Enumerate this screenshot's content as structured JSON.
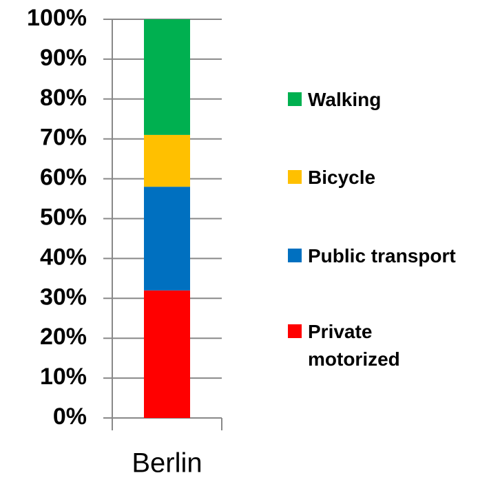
{
  "chart_data": {
    "type": "stacked-bar",
    "categories": [
      "Berlin"
    ],
    "series": [
      {
        "name": "Private\nmotorized",
        "color": "#ff0000",
        "values": [
          32
        ]
      },
      {
        "name": "Public transport",
        "color": "#0070c0",
        "values": [
          26
        ]
      },
      {
        "name": "Bicycle",
        "color": "#ffc000",
        "values": [
          13
        ]
      },
      {
        "name": "Walking",
        "color": "#00b050",
        "values": [
          29
        ]
      }
    ],
    "ylim": [
      0,
      100
    ],
    "yticks": [
      {
        "value": 0,
        "label": "0%"
      },
      {
        "value": 10,
        "label": "10%"
      },
      {
        "value": 20,
        "label": "20%"
      },
      {
        "value": 30,
        "label": "30%"
      },
      {
        "value": 40,
        "label": "40%"
      },
      {
        "value": 50,
        "label": "50%"
      },
      {
        "value": 60,
        "label": "60%"
      },
      {
        "value": 70,
        "label": "70%"
      },
      {
        "value": 80,
        "label": "80%"
      },
      {
        "value": 90,
        "label": "90%"
      },
      {
        "value": 100,
        "label": "100%"
      }
    ],
    "grid": true,
    "legend": "right"
  }
}
